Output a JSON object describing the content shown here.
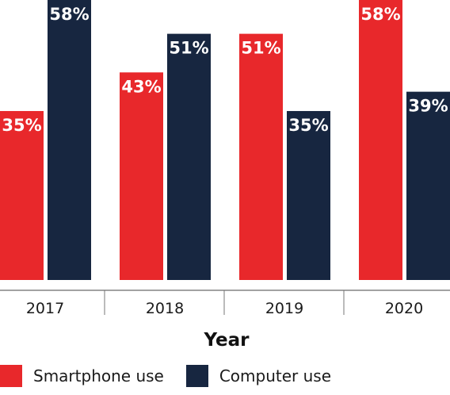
{
  "chart_data": {
    "type": "bar",
    "categories": [
      "2017",
      "2018",
      "2019",
      "2020"
    ],
    "series": [
      {
        "name": "Smartphone use",
        "color": "#e8282b",
        "values": [
          35,
          43,
          51,
          58
        ],
        "labels": [
          "35%",
          "43%",
          "51%",
          "58%"
        ]
      },
      {
        "name": "Computer use",
        "color": "#172640",
        "values": [
          58,
          51,
          35,
          39
        ],
        "labels": [
          "58%",
          "51%",
          "35%",
          "39%"
        ]
      }
    ],
    "xlabel": "Year",
    "ylabel": "",
    "ylim": [
      0,
      58
    ],
    "unit": "%",
    "legend": "bottom-left",
    "grid": false
  }
}
